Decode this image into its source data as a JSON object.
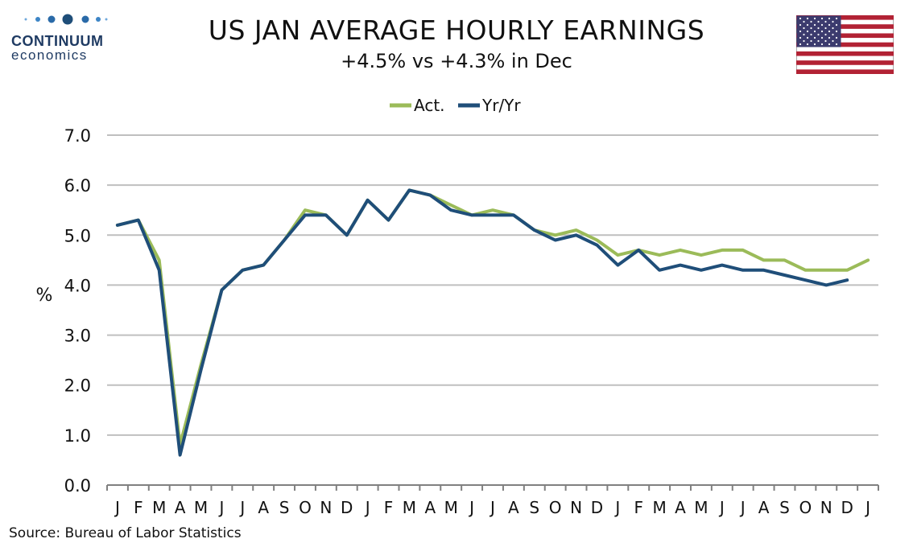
{
  "logo": {
    "name": "CONTINUUM",
    "sub": "economics"
  },
  "header": {
    "title": "US JAN AVERAGE HOURLY EARNINGS",
    "subtitle": "+4.5% vs +4.3% in Dec"
  },
  "source": "Source: Bureau of Labor Statistics",
  "colors": {
    "act": "#9bbb59",
    "yoy": "#1f4e79",
    "grid": "#bfbfbf",
    "axis": "#808080"
  },
  "icons": {
    "logo": "continuum-dots-icon",
    "flag": "us-flag-icon"
  },
  "chart_data": {
    "type": "line",
    "title": "US JAN AVERAGE HOURLY EARNINGS",
    "subtitle": "+4.5% vs +4.3% in Dec",
    "xlabel": "",
    "ylabel": "%",
    "ylim": [
      0,
      7
    ],
    "yticks": [
      "0.0",
      "1.0",
      "2.0",
      "3.0",
      "4.0",
      "5.0",
      "6.0",
      "7.0"
    ],
    "grid": true,
    "legend_position": "top-center",
    "categories": [
      "J",
      "F",
      "M",
      "A",
      "M",
      "J",
      "J",
      "A",
      "S",
      "O",
      "N",
      "D",
      "J",
      "F",
      "M",
      "A",
      "M",
      "J",
      "J",
      "A",
      "S",
      "O",
      "N",
      "D",
      "J",
      "F",
      "M",
      "A",
      "M",
      "J",
      "J",
      "A",
      "S",
      "O",
      "N",
      "D",
      "J"
    ],
    "series": [
      {
        "name": "Act.",
        "color": "#9bbb59",
        "values": [
          5.2,
          5.3,
          4.5,
          0.8,
          2.4,
          3.9,
          4.3,
          4.4,
          4.9,
          5.5,
          5.4,
          5.0,
          5.7,
          5.3,
          5.9,
          5.8,
          5.6,
          5.4,
          5.5,
          5.4,
          5.1,
          5.0,
          5.1,
          4.9,
          4.6,
          4.7,
          4.6,
          4.7,
          4.6,
          4.7,
          4.7,
          4.5,
          4.5,
          4.3,
          4.3,
          4.3,
          4.5
        ]
      },
      {
        "name": "Yr/Yr",
        "color": "#1f4e79",
        "values": [
          5.2,
          5.3,
          4.3,
          0.6,
          2.3,
          3.9,
          4.3,
          4.4,
          4.9,
          5.4,
          5.4,
          5.0,
          5.7,
          5.3,
          5.9,
          5.8,
          5.5,
          5.4,
          5.4,
          5.4,
          5.1,
          4.9,
          5.0,
          4.8,
          4.4,
          4.7,
          4.3,
          4.4,
          4.3,
          4.4,
          4.3,
          4.3,
          4.2,
          4.1,
          4.0,
          4.1,
          null
        ]
      }
    ]
  }
}
